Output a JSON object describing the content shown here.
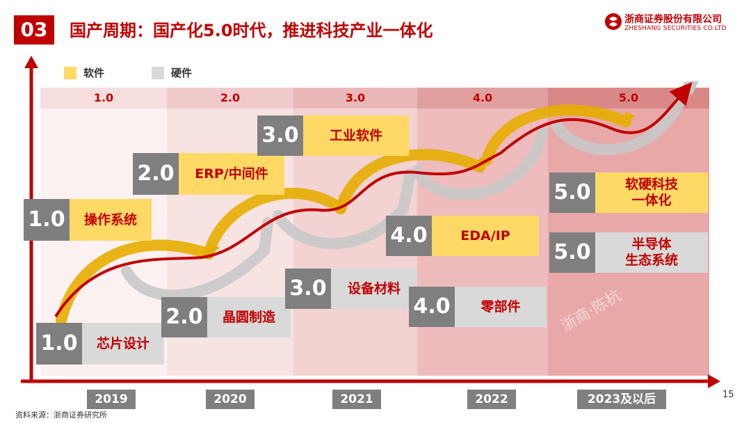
{
  "header": {
    "section_number": "03",
    "title": "国产周期：国产化5.0时代，推进科技产业一体化",
    "company_cn": "浙商证券股份有限公司",
    "company_en": "ZHESHANG SECURITIES CO.LTD"
  },
  "legend": [
    {
      "label": "软件",
      "color": "#ffd966"
    },
    {
      "label": "硬件",
      "color": "#d9d9d9"
    }
  ],
  "phases": [
    "1.0",
    "2.0",
    "3.0",
    "4.0",
    "5.0"
  ],
  "years": [
    "2019",
    "2020",
    "2021",
    "2022",
    "2023及以后"
  ],
  "software": [
    {
      "num": "1.0",
      "label": "操作系统"
    },
    {
      "num": "2.0",
      "label": "ERP/中间件"
    },
    {
      "num": "3.0",
      "label": "工业软件"
    },
    {
      "num": "4.0",
      "label": "EDA/IP"
    },
    {
      "num": "5.0",
      "label": "软硬科技\n一体化"
    }
  ],
  "hardware": [
    {
      "num": "1.0",
      "label": "芯片设计"
    },
    {
      "num": "2.0",
      "label": "晶圆制造"
    },
    {
      "num": "3.0",
      "label": "设备材料"
    },
    {
      "num": "4.0",
      "label": "零部件"
    },
    {
      "num": "5.0",
      "label": "半导体\n生态系统"
    }
  ],
  "watermark": "浙商·陈杭",
  "footer": {
    "source": "资料来源：浙商证券研究所",
    "page": "15"
  },
  "colors": {
    "accent": "#c00000",
    "software": "#ffd966",
    "hardware": "#d9d9d9",
    "number_box": "#7f7f7f"
  }
}
